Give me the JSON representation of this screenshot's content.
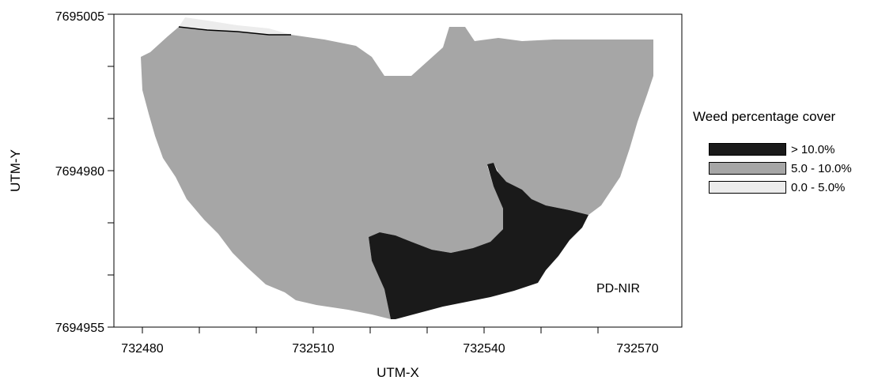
{
  "map": {
    "panel_label": "PD-NIR",
    "x_axis": {
      "title": "UTM-X",
      "range": [
        732480,
        732570
      ],
      "tick_labels": [
        "732480",
        "732510",
        "732540",
        "732570"
      ]
    },
    "y_axis": {
      "title": "UTM-Y",
      "range": [
        7694955,
        7695005
      ],
      "tick_labels": [
        "7694955",
        "7694980",
        "7695005"
      ]
    }
  },
  "legend": {
    "title": "Weed percentage cover",
    "items": [
      {
        "label": "> 10.0%",
        "color": "#1a1a1a"
      },
      {
        "label": "5.0 - 10.0%",
        "color": "#a6a6a6"
      },
      {
        "label": "0.0 - 5.0%",
        "color": "#ececec"
      }
    ]
  }
}
